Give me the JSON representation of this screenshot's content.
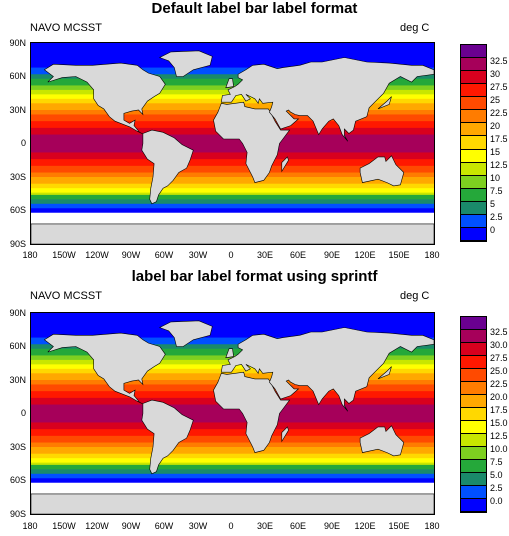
{
  "panels": [
    {
      "title": "Default label bar label format",
      "left_label": "NAVO MCSST",
      "right_label": "deg C",
      "lat_ticks": [
        "90N",
        "60N",
        "30N",
        "0",
        "30S",
        "60S",
        "90S"
      ],
      "lon_ticks": [
        "180",
        "150W",
        "120W",
        "90W",
        "60W",
        "30W",
        "0",
        "30E",
        "60E",
        "90E",
        "120E",
        "150E",
        "180"
      ],
      "labelbar_labels": [
        "32.5",
        "30",
        "27.5",
        "25",
        "22.5",
        "20",
        "17.5",
        "15",
        "12.5",
        "10",
        "7.5",
        "5",
        "2.5",
        "0"
      ]
    },
    {
      "title": "label bar label format using sprintf",
      "left_label": "NAVO MCSST",
      "right_label": "deg C",
      "lat_ticks": [
        "90N",
        "60N",
        "30N",
        "0",
        "30S",
        "60S",
        "90S"
      ],
      "lon_ticks": [
        "180",
        "150W",
        "120W",
        "90W",
        "60W",
        "30W",
        "0",
        "30E",
        "60E",
        "90E",
        "120E",
        "150E",
        "180"
      ],
      "labelbar_labels": [
        "32.5",
        "30.0",
        "27.5",
        "25.0",
        "22.5",
        "20.0",
        "17.5",
        "15.0",
        "12.5",
        "10.0",
        "7.5",
        "5.0",
        "2.5",
        "0.0"
      ]
    }
  ],
  "colors": {
    "bins": [
      "#0000ff",
      "#0050ff",
      "#1a8a6a",
      "#25a83a",
      "#7ed020",
      "#c8e600",
      "#ffff00",
      "#ffd800",
      "#ffa800",
      "#ff7c00",
      "#ff4a00",
      "#ff1800",
      "#d8001e",
      "#a6005a",
      "#6a0090"
    ],
    "land": "#d9d9d9"
  }
}
